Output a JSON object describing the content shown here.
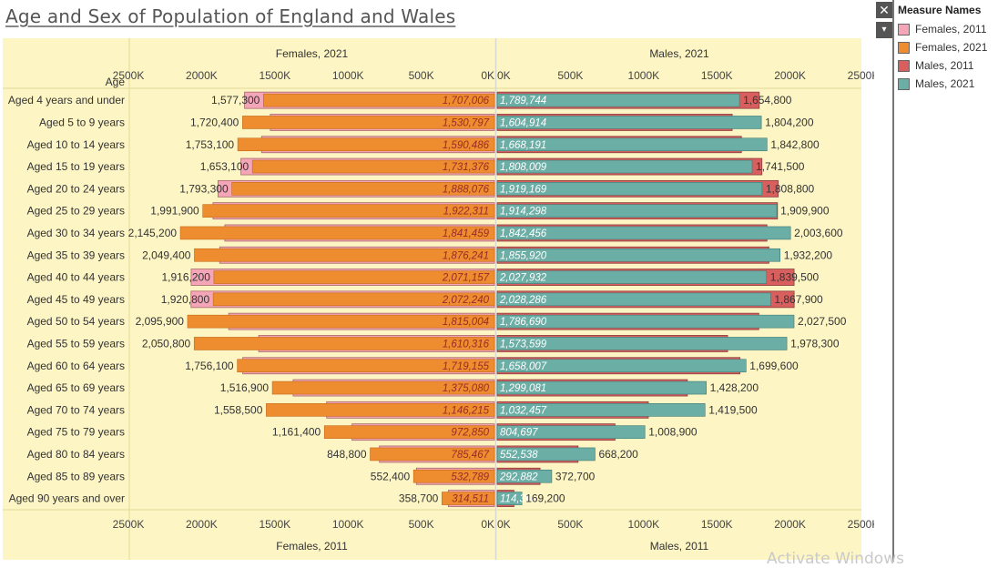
{
  "title": "Age and Sex of Population of England and Wales",
  "legend": {
    "title": "Measure Names",
    "items": [
      {
        "label": "Females, 2011",
        "color": "#f4a6b8"
      },
      {
        "label": "Females, 2021",
        "color": "#ee8c30"
      },
      {
        "label": "Males, 2011",
        "color": "#d95f5f"
      },
      {
        "label": "Males, 2021",
        "color": "#6aaea6"
      }
    ]
  },
  "controls": {
    "close_glyph": "✕",
    "menu_glyph": "▾"
  },
  "watermark": "Activate Windows",
  "chart_data": {
    "type": "bar",
    "orientation": "horizontal-diverging",
    "row_header": "Age",
    "pane_titles": {
      "female_top": "Females, 2021",
      "male_top": "Males, 2021",
      "female_bottom": "Females, 2011",
      "male_bottom": "Males, 2011"
    },
    "female_ticks": [
      "2500K",
      "2000K",
      "1500K",
      "1000K",
      "500K",
      "0K"
    ],
    "male_ticks": [
      "0K",
      "500K",
      "1000K",
      "1500K",
      "2000K",
      "2500K"
    ],
    "xlim": [
      0,
      2500000
    ],
    "colors": {
      "females_2011": "#f4a6b8",
      "females_2021": "#ee8c30",
      "males_2011": "#d95f5f",
      "males_2021": "#6aaea6",
      "background": "#fdf5c3"
    },
    "categories": [
      "Aged 4 years and under",
      "Aged 5 to 9 years",
      "Aged 10 to 14 years",
      "Aged 15 to 19 years",
      "Aged 20 to 24 years",
      "Aged 25 to 29 years",
      "Aged 30 to 34 years",
      "Aged 35 to 39 years",
      "Aged 40 to 44 years",
      "Aged 45 to 49 years",
      "Aged 50 to 54 years",
      "Aged 55 to 59 years",
      "Aged 60 to 64 years",
      "Aged 65 to 69 years",
      "Aged 70 to 74 years",
      "Aged 75 to 79 years",
      "Aged 80 to 84 years",
      "Aged 85 to 89 years",
      "Aged 90 years and over"
    ],
    "series": [
      {
        "name": "Females, 2021",
        "values": [
          1577300,
          1720400,
          1753100,
          1653100,
          1793300,
          1991900,
          2145200,
          2049400,
          1916200,
          1920800,
          2095900,
          2050800,
          1756100,
          1516900,
          1558500,
          1161400,
          848800,
          552400,
          358700
        ],
        "labels": [
          "1,577,300",
          "1,720,400",
          "1,753,100",
          "1,653,100",
          "1,793,300",
          "1,991,900",
          "2,145,200",
          "2,049,400",
          "1,916,200",
          "1,920,800",
          "2,095,900",
          "2,050,800",
          "1,756,100",
          "1,516,900",
          "1,558,500",
          "1,161,400",
          "848,800",
          "552,400",
          "358,700"
        ]
      },
      {
        "name": "Females, 2011",
        "values": [
          1707006,
          1530797,
          1590486,
          1731376,
          1888076,
          1922311,
          1841459,
          1876241,
          2071157,
          2072240,
          1815004,
          1610316,
          1719155,
          1375080,
          1146215,
          972850,
          785467,
          532789,
          314511
        ],
        "labels": [
          "1,707,006",
          "1,530,797",
          "1,590,486",
          "1,731,376",
          "1,888,076",
          "1,922,311",
          "1,841,459",
          "1,876,241",
          "2,071,157",
          "2,072,240",
          "1,815,004",
          "1,610,316",
          "1,719,155",
          "1,375,080",
          "1,146,215",
          "972,850",
          "785,467",
          "532,789",
          "314,511"
        ]
      },
      {
        "name": "Males, 2021",
        "values": [
          1654800,
          1804200,
          1842800,
          1741500,
          1808800,
          1909900,
          2003600,
          1932200,
          1839500,
          1867900,
          2027500,
          1978300,
          1699600,
          1428200,
          1419500,
          1008900,
          668200,
          372700,
          169200
        ],
        "labels": [
          "1,654,800",
          "1,804,200",
          "1,842,800",
          "1,741,500",
          "1,808,800",
          "1,909,900",
          "2,003,600",
          "1,932,200",
          "1,839,500",
          "1,867,900",
          "2,027,500",
          "1,978,300",
          "1,699,600",
          "1,428,200",
          "1,419,500",
          "1,008,900",
          "668,200",
          "372,700",
          "169,200"
        ]
      },
      {
        "name": "Males, 2011",
        "values": [
          1789744,
          1604914,
          1668191,
          1808009,
          1919169,
          1914298,
          1842456,
          1855920,
          2027932,
          2028286,
          1786690,
          1573599,
          1658007,
          1299081,
          1032457,
          804697,
          552538,
          292882,
          114366
        ],
        "labels": [
          "1,789,744",
          "1,604,914",
          "1,668,191",
          "1,808,009",
          "1,919,169",
          "1,914,298",
          "1,842,456",
          "1,855,920",
          "2,027,932",
          "2,028,286",
          "1,786,690",
          "1,573,599",
          "1,658,007",
          "1,299,081",
          "1,032,457",
          "804,697",
          "552,538",
          "292,882",
          "114,366"
        ]
      }
    ],
    "legend_position": "right",
    "grid": false
  }
}
